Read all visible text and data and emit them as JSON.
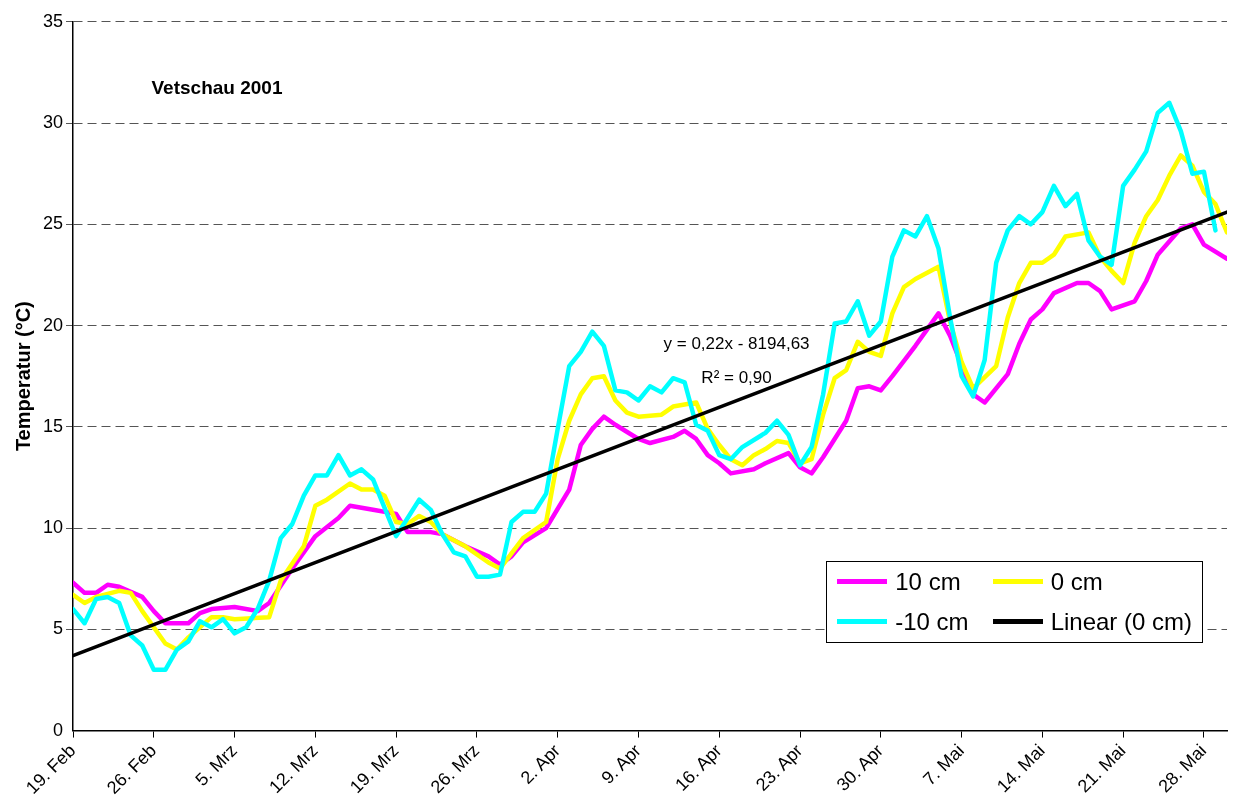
{
  "chart_data": {
    "type": "line",
    "title": "Vetschau 2001",
    "ylabel": "Temperatur (°C)",
    "annotations": [
      "y = 0,22x - 8194,63",
      "R² = 0,90"
    ],
    "xlim": [
      "2001-02-19",
      "2001-05-30"
    ],
    "xticks": [
      {
        "value": "2001-02-19",
        "label": "19. Feb"
      },
      {
        "value": "2001-02-26",
        "label": "26. Feb"
      },
      {
        "value": "2001-03-05",
        "label": "5. Mrz"
      },
      {
        "value": "2001-03-12",
        "label": "12. Mrz"
      },
      {
        "value": "2001-03-19",
        "label": "19. Mrz"
      },
      {
        "value": "2001-03-26",
        "label": "26. Mrz"
      },
      {
        "value": "2001-04-02",
        "label": "2. Apr"
      },
      {
        "value": "2001-04-09",
        "label": "9. Apr"
      },
      {
        "value": "2001-04-16",
        "label": "16. Apr"
      },
      {
        "value": "2001-04-23",
        "label": "23. Apr"
      },
      {
        "value": "2001-04-30",
        "label": "30. Apr"
      },
      {
        "value": "2001-05-07",
        "label": "7. Mai"
      },
      {
        "value": "2001-05-14",
        "label": "14. Mai"
      },
      {
        "value": "2001-05-21",
        "label": "21. Mai"
      },
      {
        "value": "2001-05-28",
        "label": "28. Mai"
      }
    ],
    "ylim": [
      0,
      35
    ],
    "yticks": [
      0,
      5,
      10,
      15,
      20,
      25,
      30,
      35
    ],
    "grid": "y",
    "legend": "bottom right",
    "marker": "none",
    "line_style": "solid",
    "series": [
      {
        "name": "10 cm",
        "color": "#ff00ff",
        "x": [
          "2001-02-19",
          "2001-02-20",
          "2001-02-21",
          "2001-02-22",
          "2001-02-23",
          "2001-02-25",
          "2001-02-26",
          "2001-02-27",
          "2001-03-01",
          "2001-03-02",
          "2001-03-03",
          "2001-03-05",
          "2001-03-07",
          "2001-03-08",
          "2001-03-10",
          "2001-03-12",
          "2001-03-14",
          "2001-03-15",
          "2001-03-17",
          "2001-03-19",
          "2001-03-20",
          "2001-03-22",
          "2001-03-23",
          "2001-03-25",
          "2001-03-27",
          "2001-03-28",
          "2001-03-29",
          "2001-03-30",
          "2001-04-01",
          "2001-04-03",
          "2001-04-04",
          "2001-04-05",
          "2001-04-06",
          "2001-04-07",
          "2001-04-09",
          "2001-04-10",
          "2001-04-12",
          "2001-04-13",
          "2001-04-14",
          "2001-04-15",
          "2001-04-16",
          "2001-04-17",
          "2001-04-19",
          "2001-04-20",
          "2001-04-22",
          "2001-04-23",
          "2001-04-24",
          "2001-04-25",
          "2001-04-27",
          "2001-04-28",
          "2001-04-29",
          "2001-04-30",
          "2001-05-01",
          "2001-05-03",
          "2001-05-04",
          "2001-05-05",
          "2001-05-06",
          "2001-05-08",
          "2001-05-09",
          "2001-05-11",
          "2001-05-12",
          "2001-05-13",
          "2001-05-14",
          "2001-05-15",
          "2001-05-17",
          "2001-05-18",
          "2001-05-19",
          "2001-05-20",
          "2001-05-22",
          "2001-05-23",
          "2001-05-24",
          "2001-05-26",
          "2001-05-27",
          "2001-05-28",
          "2001-05-30"
        ],
        "values": [
          7.3,
          6.8,
          6.8,
          7.2,
          7.1,
          6.6,
          5.9,
          5.3,
          5.3,
          5.8,
          6.0,
          6.1,
          5.9,
          6.3,
          8.0,
          9.6,
          10.5,
          11.1,
          10.9,
          10.7,
          9.8,
          9.8,
          9.7,
          9.1,
          8.6,
          8.2,
          8.6,
          9.3,
          10.0,
          11.9,
          14.1,
          14.9,
          15.5,
          15.1,
          14.4,
          14.2,
          14.5,
          14.8,
          14.4,
          13.6,
          13.2,
          12.7,
          12.9,
          13.2,
          13.7,
          13.0,
          12.7,
          13.5,
          15.3,
          16.9,
          17.0,
          16.8,
          17.5,
          19.0,
          19.8,
          20.6,
          19.5,
          16.6,
          16.2,
          17.6,
          19.1,
          20.3,
          20.8,
          21.6,
          22.1,
          22.1,
          21.7,
          20.8,
          21.2,
          22.2,
          23.5,
          24.8,
          25.0,
          24.0,
          23.3
        ]
      },
      {
        "name": "0 cm",
        "color": "#ffff00",
        "x": [
          "2001-02-19",
          "2001-02-20",
          "2001-02-21",
          "2001-02-23",
          "2001-02-24",
          "2001-02-25",
          "2001-02-27",
          "2001-02-28",
          "2001-03-01",
          "2001-03-03",
          "2001-03-04",
          "2001-03-05",
          "2001-03-08",
          "2001-03-09",
          "2001-03-11",
          "2001-03-12",
          "2001-03-13",
          "2001-03-15",
          "2001-03-16",
          "2001-03-17",
          "2001-03-18",
          "2001-03-19",
          "2001-03-20",
          "2001-03-21",
          "2001-03-22",
          "2001-03-23",
          "2001-03-25",
          "2001-03-27",
          "2001-03-28",
          "2001-03-30",
          "2001-04-01",
          "2001-04-02",
          "2001-04-03",
          "2001-04-04",
          "2001-04-05",
          "2001-04-06",
          "2001-04-07",
          "2001-04-08",
          "2001-04-09",
          "2001-04-11",
          "2001-04-12",
          "2001-04-14",
          "2001-04-15",
          "2001-04-16",
          "2001-04-17",
          "2001-04-18",
          "2001-04-19",
          "2001-04-20",
          "2001-04-21",
          "2001-04-22",
          "2001-04-23",
          "2001-04-24",
          "2001-04-25",
          "2001-04-26",
          "2001-04-27",
          "2001-04-28",
          "2001-04-29",
          "2001-04-30",
          "2001-05-01",
          "2001-05-02",
          "2001-05-03",
          "2001-05-05",
          "2001-05-06",
          "2001-05-07",
          "2001-05-08",
          "2001-05-10",
          "2001-05-11",
          "2001-05-12",
          "2001-05-13",
          "2001-05-14",
          "2001-05-15",
          "2001-05-16",
          "2001-05-18",
          "2001-05-19",
          "2001-05-20",
          "2001-05-21",
          "2001-05-22",
          "2001-05-23",
          "2001-05-24",
          "2001-05-25",
          "2001-05-26",
          "2001-05-27",
          "2001-05-28",
          "2001-05-29",
          "2001-05-30"
        ],
        "values": [
          6.7,
          6.3,
          6.6,
          6.9,
          6.8,
          5.9,
          4.3,
          4.0,
          4.6,
          5.6,
          5.6,
          5.5,
          5.6,
          7.4,
          9.1,
          11.1,
          11.4,
          12.2,
          11.9,
          11.9,
          11.6,
          10.3,
          10.2,
          10.6,
          10.3,
          9.7,
          9.1,
          8.3,
          8.0,
          9.5,
          10.3,
          13.4,
          15.3,
          16.6,
          17.4,
          17.5,
          16.3,
          15.7,
          15.5,
          15.6,
          16.0,
          16.2,
          14.9,
          14.1,
          13.4,
          13.1,
          13.6,
          13.9,
          14.3,
          14.2,
          13.2,
          13.4,
          15.6,
          17.4,
          17.8,
          19.2,
          18.7,
          18.5,
          20.6,
          21.9,
          22.3,
          22.9,
          20.2,
          18.2,
          16.9,
          18.0,
          20.4,
          22.1,
          23.1,
          23.1,
          23.5,
          24.4,
          24.6,
          23.4,
          22.7,
          22.1,
          24.1,
          25.4,
          26.2,
          27.4,
          28.4,
          27.9,
          26.6,
          26.0,
          24.6
        ]
      },
      {
        "name": "-10 cm",
        "color": "#00ffff",
        "x": [
          "2001-02-19",
          "2001-02-20",
          "2001-02-21",
          "2001-02-22",
          "2001-02-23",
          "2001-02-24",
          "2001-02-25",
          "2001-02-26",
          "2001-02-27",
          "2001-02-28",
          "2001-03-01",
          "2001-03-02",
          "2001-03-03",
          "2001-03-04",
          "2001-03-05",
          "2001-03-06",
          "2001-03-07",
          "2001-03-08",
          "2001-03-09",
          "2001-03-10",
          "2001-03-11",
          "2001-03-12",
          "2001-03-13",
          "2001-03-14",
          "2001-03-15",
          "2001-03-16",
          "2001-03-17",
          "2001-03-18",
          "2001-03-19",
          "2001-03-20",
          "2001-03-21",
          "2001-03-22",
          "2001-03-23",
          "2001-03-24",
          "2001-03-25",
          "2001-03-26",
          "2001-03-27",
          "2001-03-28",
          "2001-03-29",
          "2001-03-30",
          "2001-03-31",
          "2001-04-01",
          "2001-04-02",
          "2001-04-03",
          "2001-04-04",
          "2001-04-05",
          "2001-04-06",
          "2001-04-07",
          "2001-04-08",
          "2001-04-09",
          "2001-04-10",
          "2001-04-11",
          "2001-04-12",
          "2001-04-13",
          "2001-04-14",
          "2001-04-15",
          "2001-04-16",
          "2001-04-17",
          "2001-04-18",
          "2001-04-20",
          "2001-04-21",
          "2001-04-22",
          "2001-04-23",
          "2001-04-24",
          "2001-04-25",
          "2001-04-26",
          "2001-04-27",
          "2001-04-28",
          "2001-04-29",
          "2001-04-30",
          "2001-05-01",
          "2001-05-02",
          "2001-05-03",
          "2001-05-04",
          "2001-05-05",
          "2001-05-06",
          "2001-05-07",
          "2001-05-08",
          "2001-05-09",
          "2001-05-10",
          "2001-05-11",
          "2001-05-12",
          "2001-05-13",
          "2001-05-14",
          "2001-05-15",
          "2001-05-16",
          "2001-05-17",
          "2001-05-18",
          "2001-05-19",
          "2001-05-20",
          "2001-05-21",
          "2001-05-22",
          "2001-05-23",
          "2001-05-24",
          "2001-05-25",
          "2001-05-26",
          "2001-05-27",
          "2001-05-28",
          "2001-05-29"
        ],
        "values": [
          6.0,
          5.3,
          6.5,
          6.6,
          6.3,
          4.7,
          4.2,
          3.0,
          3.0,
          4.0,
          4.4,
          5.4,
          5.1,
          5.5,
          4.8,
          5.1,
          6.0,
          7.4,
          9.5,
          10.2,
          11.6,
          12.6,
          12.6,
          13.6,
          12.6,
          12.9,
          12.4,
          11.0,
          9.6,
          10.5,
          11.4,
          10.9,
          9.7,
          8.8,
          8.6,
          7.6,
          7.6,
          7.7,
          10.3,
          10.8,
          10.8,
          11.7,
          14.9,
          18.0,
          18.7,
          19.7,
          19.0,
          16.8,
          16.7,
          16.3,
          17.0,
          16.7,
          17.4,
          17.2,
          15.1,
          14.8,
          13.6,
          13.4,
          14.0,
          14.7,
          15.3,
          14.6,
          13.1,
          14.0,
          16.6,
          20.1,
          20.2,
          21.2,
          19.5,
          20.2,
          23.4,
          24.7,
          24.4,
          25.4,
          23.8,
          20.4,
          17.5,
          16.5,
          18.3,
          23.1,
          24.7,
          25.4,
          25.0,
          25.6,
          26.9,
          25.9,
          26.5,
          24.2,
          23.4,
          23.0,
          26.9,
          27.7,
          28.6,
          30.5,
          31.0,
          29.6,
          27.5,
          27.6,
          24.7
        ]
      },
      {
        "name": "Linear (0 cm)",
        "color": "#000000",
        "type": "line",
        "x": [
          "2001-02-19",
          "2001-05-30"
        ],
        "values": [
          3.7,
          25.6
        ]
      }
    ]
  }
}
